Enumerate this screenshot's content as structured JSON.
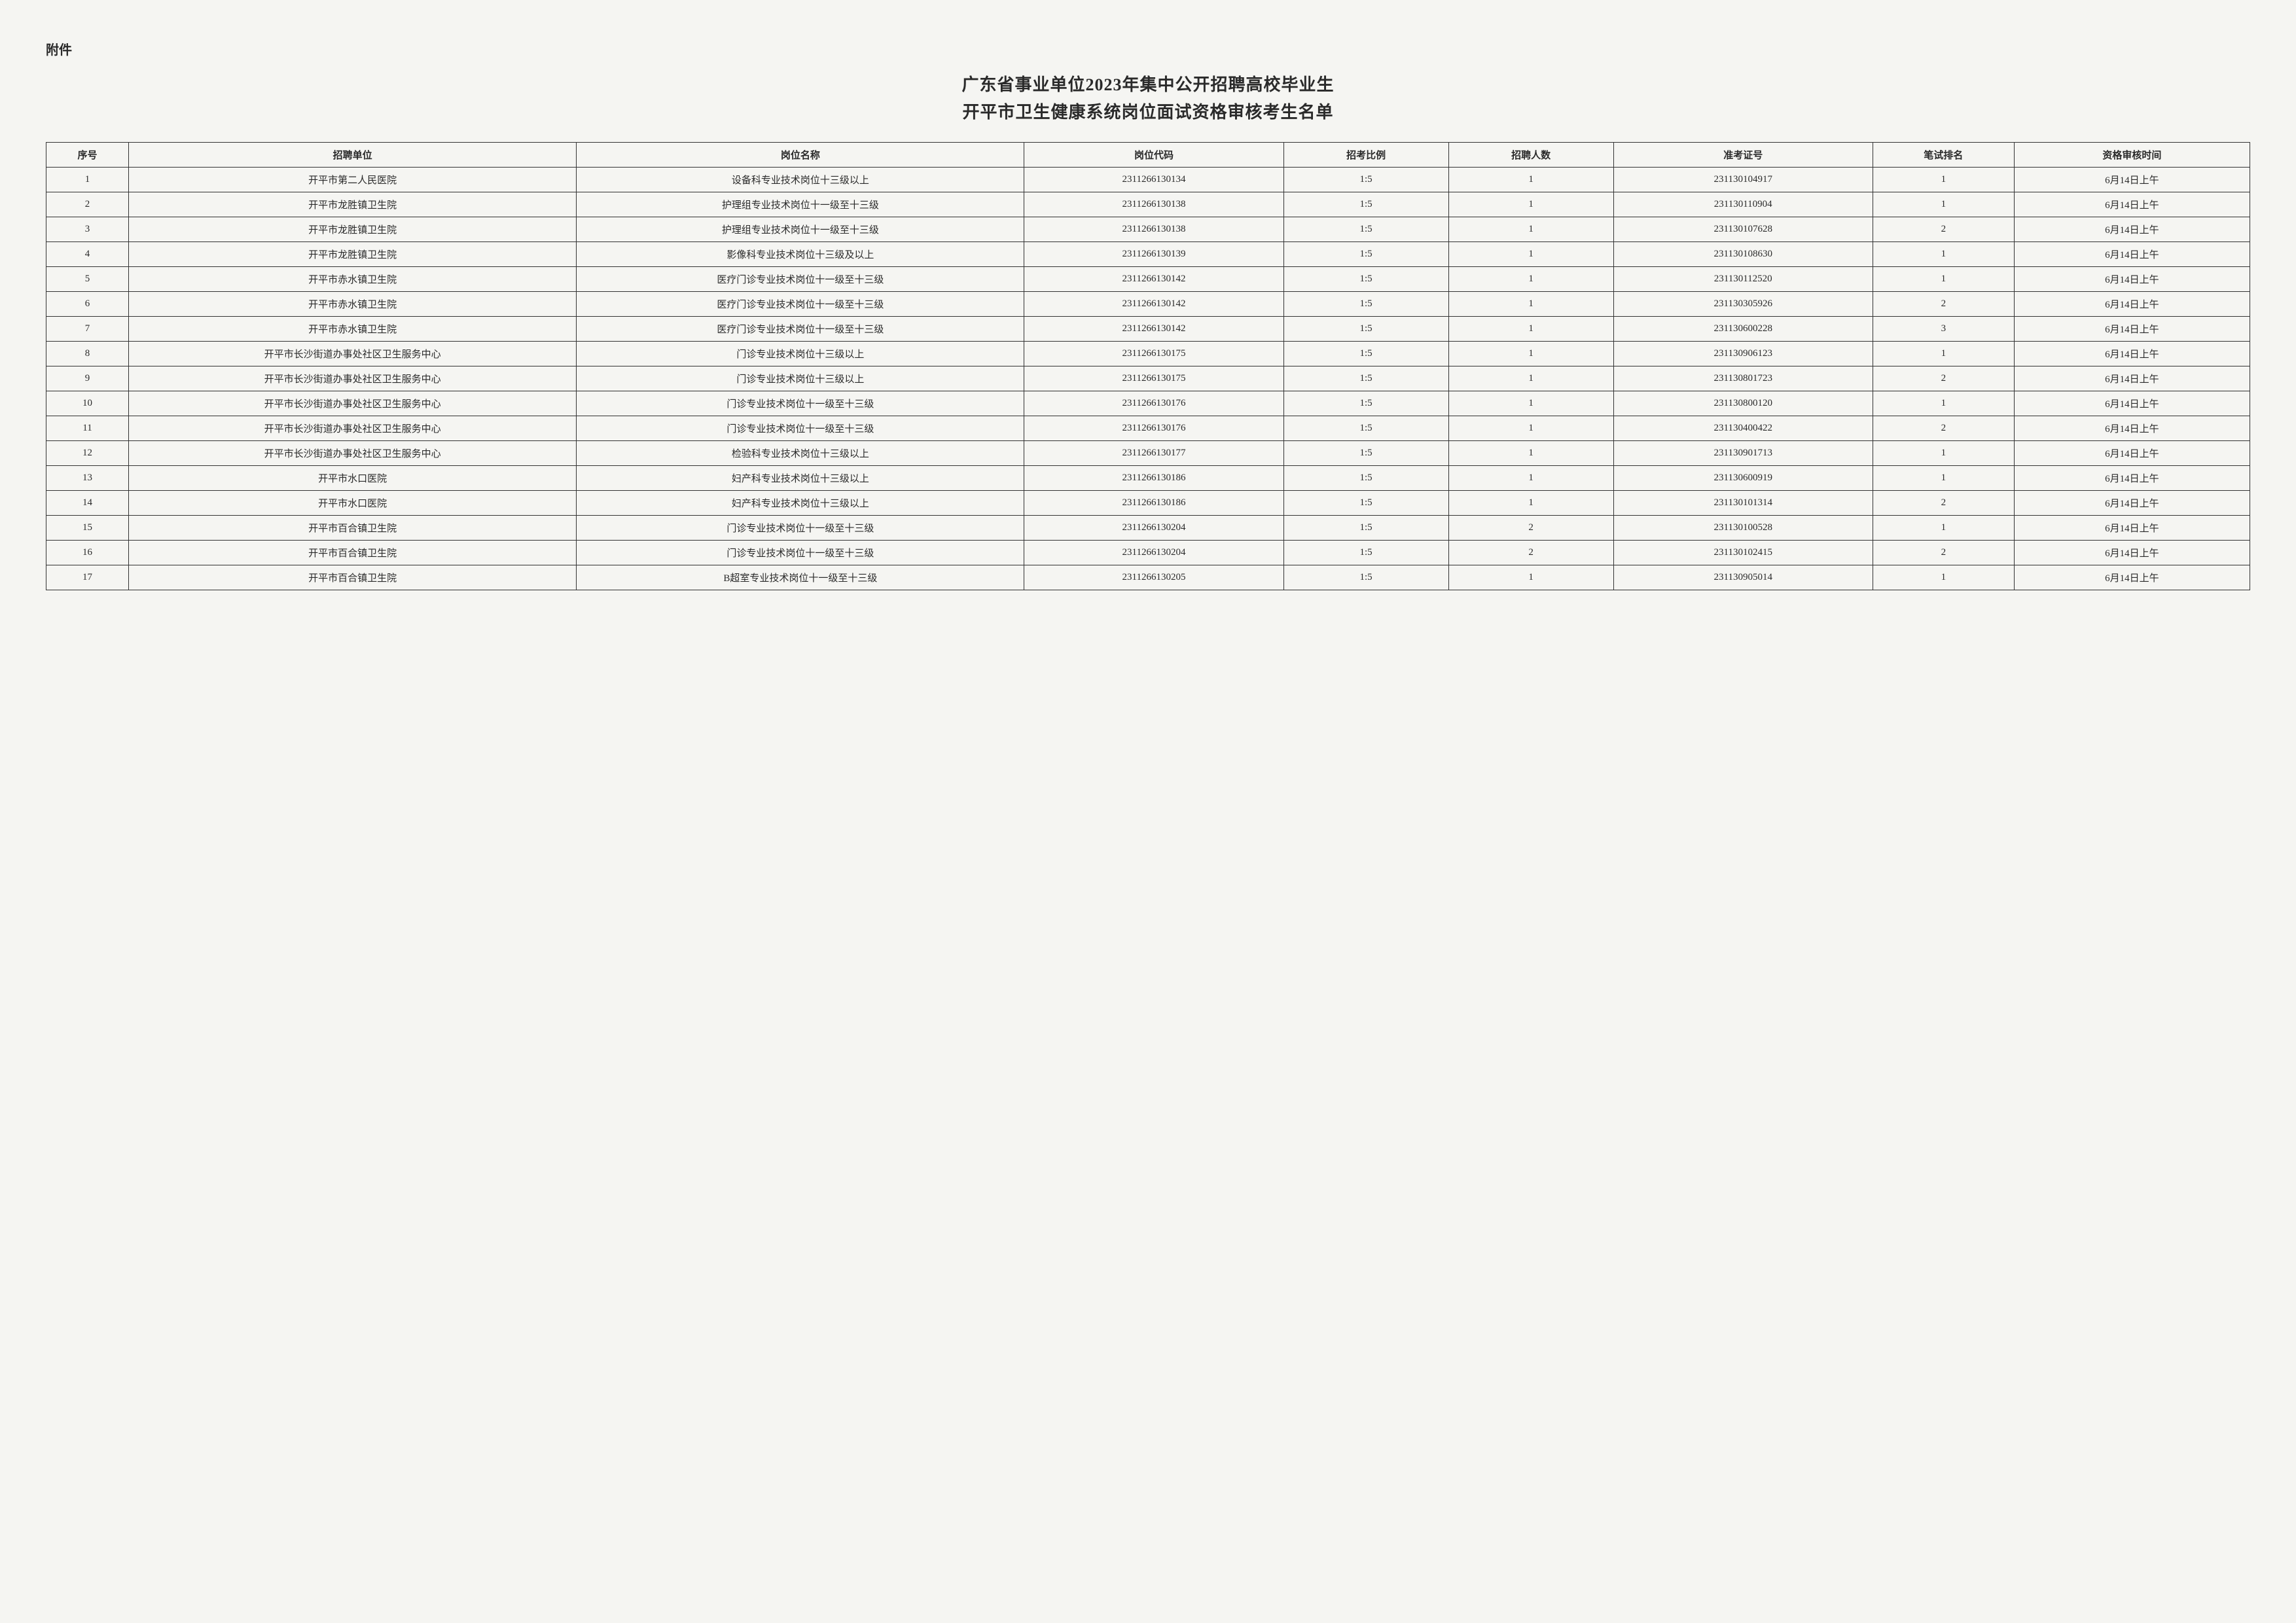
{
  "attachment_label": "附件",
  "title_line1": "广东省事业单位2023年集中公开招聘高校毕业生",
  "title_line2": "开平市卫生健康系统岗位面试资格审核考生名单",
  "headers": {
    "seq": "序号",
    "unit": "招聘单位",
    "position": "岗位名称",
    "code": "岗位代码",
    "ratio": "招考比例",
    "count": "招聘人数",
    "ticket": "准考证号",
    "rank": "笔试排名",
    "time": "资格审核时间"
  },
  "rows": [
    {
      "seq": "1",
      "unit": "开平市第二人民医院",
      "position": "设备科专业技术岗位十三级以上",
      "code": "2311266130134",
      "ratio": "1:5",
      "count": "1",
      "ticket": "231130104917",
      "rank": "1",
      "time": "6月14日上午"
    },
    {
      "seq": "2",
      "unit": "开平市龙胜镇卫生院",
      "position": "护理组专业技术岗位十一级至十三级",
      "code": "2311266130138",
      "ratio": "1:5",
      "count": "1",
      "ticket": "231130110904",
      "rank": "1",
      "time": "6月14日上午"
    },
    {
      "seq": "3",
      "unit": "开平市龙胜镇卫生院",
      "position": "护理组专业技术岗位十一级至十三级",
      "code": "2311266130138",
      "ratio": "1:5",
      "count": "1",
      "ticket": "231130107628",
      "rank": "2",
      "time": "6月14日上午"
    },
    {
      "seq": "4",
      "unit": "开平市龙胜镇卫生院",
      "position": "影像科专业技术岗位十三级及以上",
      "code": "2311266130139",
      "ratio": "1:5",
      "count": "1",
      "ticket": "231130108630",
      "rank": "1",
      "time": "6月14日上午"
    },
    {
      "seq": "5",
      "unit": "开平市赤水镇卫生院",
      "position": "医疗门诊专业技术岗位十一级至十三级",
      "code": "2311266130142",
      "ratio": "1:5",
      "count": "1",
      "ticket": "231130112520",
      "rank": "1",
      "time": "6月14日上午"
    },
    {
      "seq": "6",
      "unit": "开平市赤水镇卫生院",
      "position": "医疗门诊专业技术岗位十一级至十三级",
      "code": "2311266130142",
      "ratio": "1:5",
      "count": "1",
      "ticket": "231130305926",
      "rank": "2",
      "time": "6月14日上午"
    },
    {
      "seq": "7",
      "unit": "开平市赤水镇卫生院",
      "position": "医疗门诊专业技术岗位十一级至十三级",
      "code": "2311266130142",
      "ratio": "1:5",
      "count": "1",
      "ticket": "231130600228",
      "rank": "3",
      "time": "6月14日上午"
    },
    {
      "seq": "8",
      "unit": "开平市长沙街道办事处社区卫生服务中心",
      "position": "门诊专业技术岗位十三级以上",
      "code": "2311266130175",
      "ratio": "1:5",
      "count": "1",
      "ticket": "231130906123",
      "rank": "1",
      "time": "6月14日上午"
    },
    {
      "seq": "9",
      "unit": "开平市长沙街道办事处社区卫生服务中心",
      "position": "门诊专业技术岗位十三级以上",
      "code": "2311266130175",
      "ratio": "1:5",
      "count": "1",
      "ticket": "231130801723",
      "rank": "2",
      "time": "6月14日上午"
    },
    {
      "seq": "10",
      "unit": "开平市长沙街道办事处社区卫生服务中心",
      "position": "门诊专业技术岗位十一级至十三级",
      "code": "2311266130176",
      "ratio": "1:5",
      "count": "1",
      "ticket": "231130800120",
      "rank": "1",
      "time": "6月14日上午"
    },
    {
      "seq": "11",
      "unit": "开平市长沙街道办事处社区卫生服务中心",
      "position": "门诊专业技术岗位十一级至十三级",
      "code": "2311266130176",
      "ratio": "1:5",
      "count": "1",
      "ticket": "231130400422",
      "rank": "2",
      "time": "6月14日上午"
    },
    {
      "seq": "12",
      "unit": "开平市长沙街道办事处社区卫生服务中心",
      "position": "检验科专业技术岗位十三级以上",
      "code": "2311266130177",
      "ratio": "1:5",
      "count": "1",
      "ticket": "231130901713",
      "rank": "1",
      "time": "6月14日上午"
    },
    {
      "seq": "13",
      "unit": "开平市水口医院",
      "position": "妇产科专业技术岗位十三级以上",
      "code": "2311266130186",
      "ratio": "1:5",
      "count": "1",
      "ticket": "231130600919",
      "rank": "1",
      "time": "6月14日上午"
    },
    {
      "seq": "14",
      "unit": "开平市水口医院",
      "position": "妇产科专业技术岗位十三级以上",
      "code": "2311266130186",
      "ratio": "1:5",
      "count": "1",
      "ticket": "231130101314",
      "rank": "2",
      "time": "6月14日上午"
    },
    {
      "seq": "15",
      "unit": "开平市百合镇卫生院",
      "position": "门诊专业技术岗位十一级至十三级",
      "code": "2311266130204",
      "ratio": "1:5",
      "count": "2",
      "ticket": "231130100528",
      "rank": "1",
      "time": "6月14日上午"
    },
    {
      "seq": "16",
      "unit": "开平市百合镇卫生院",
      "position": "门诊专业技术岗位十一级至十三级",
      "code": "2311266130204",
      "ratio": "1:5",
      "count": "2",
      "ticket": "231130102415",
      "rank": "2",
      "time": "6月14日上午"
    },
    {
      "seq": "17",
      "unit": "开平市百合镇卫生院",
      "position": "B超室专业技术岗位十一级至十三级",
      "code": "2311266130205",
      "ratio": "1:5",
      "count": "1",
      "ticket": "231130905014",
      "rank": "1",
      "time": "6月14日上午"
    }
  ]
}
